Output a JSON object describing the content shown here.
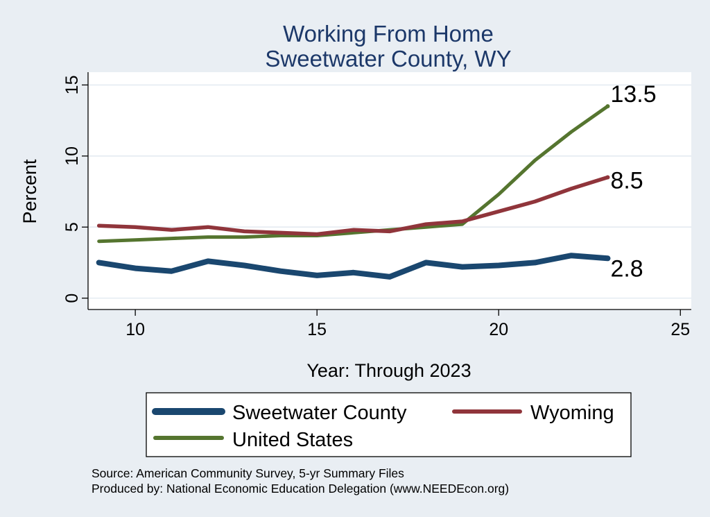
{
  "chart_data": {
    "type": "line",
    "title_lines": [
      "Working From Home",
      "Sweetwater County, WY"
    ],
    "xlabel": "Year: Through 2023",
    "ylabel": "Percent",
    "xlim": [
      8.7,
      25.3
    ],
    "ylim": [
      -0.8,
      15.9
    ],
    "xticks": [
      10,
      15,
      20,
      25
    ],
    "yticks": [
      0,
      5,
      10,
      15
    ],
    "grid": true,
    "legend_position": "bottom",
    "x": [
      9,
      10,
      11,
      12,
      13,
      14,
      15,
      16,
      17,
      18,
      19,
      20,
      21,
      22,
      23
    ],
    "series": [
      {
        "name": "Sweetwater County",
        "color": "#1a476f",
        "values": [
          2.5,
          2.1,
          1.9,
          2.6,
          2.3,
          1.9,
          1.6,
          1.8,
          1.5,
          2.5,
          2.2,
          2.3,
          2.5,
          3.0,
          2.8
        ],
        "end_label": "2.8"
      },
      {
        "name": "Wyoming",
        "color": "#90353b",
        "values": [
          5.1,
          5.0,
          4.8,
          5.0,
          4.7,
          4.6,
          4.5,
          4.8,
          4.7,
          5.2,
          5.4,
          6.1,
          6.8,
          7.7,
          8.5
        ],
        "end_label": "8.5"
      },
      {
        "name": "United States",
        "color": "#55752f",
        "values": [
          4.0,
          4.1,
          4.2,
          4.3,
          4.3,
          4.4,
          4.4,
          4.6,
          4.8,
          5.0,
          5.2,
          7.3,
          9.7,
          11.7,
          13.5
        ],
        "end_label": "13.5"
      }
    ]
  },
  "notes": [
    "Source: American Community Survey, 5-yr Summary Files",
    "Produced by: National Economic Education Delegation (www.NEEDEcon.org)"
  ]
}
